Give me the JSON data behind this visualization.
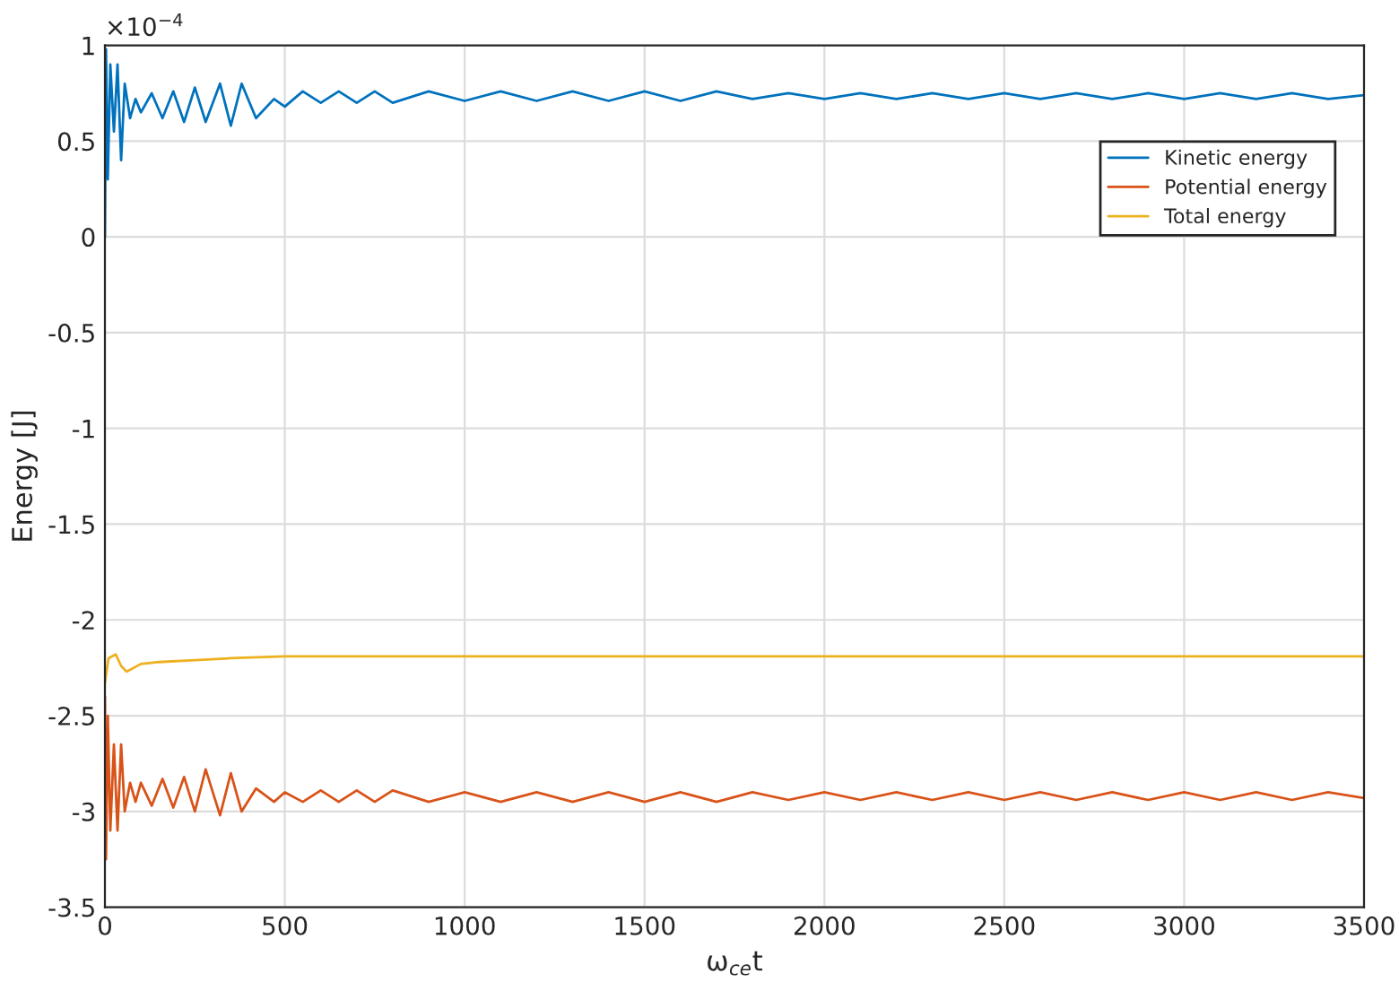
{
  "chart_data": {
    "type": "line",
    "xlabel": "ω$_{ce}$t",
    "ylabel": "Energy [J]",
    "annotations": [
      "×10$^{−4}$"
    ],
    "xlim": [
      0,
      3500
    ],
    "xticks": [
      0,
      500,
      1000,
      1500,
      2000,
      2500,
      3000,
      3500
    ],
    "ylim": [
      -3.5,
      1
    ],
    "yticks": [
      1,
      0.5,
      0,
      -0.5,
      -1,
      -1.5,
      -2,
      -2.5,
      -3,
      -3.5
    ],
    "grid": true,
    "legend": "top right",
    "x": [
      0,
      3,
      8,
      15,
      25,
      35,
      45,
      55,
      70,
      85,
      100,
      130,
      160,
      190,
      220,
      250,
      280,
      320,
      350,
      380,
      420,
      470,
      500,
      550,
      600,
      650,
      700,
      750,
      800,
      900,
      1000,
      1100,
      1200,
      1300,
      1400,
      1500,
      1600,
      1700,
      1800,
      1900,
      2000,
      2100,
      2200,
      2300,
      2400,
      2500,
      2600,
      2700,
      2800,
      2900,
      3000,
      3100,
      3200,
      3300,
      3400,
      3500
    ],
    "series": [
      {
        "name": "Kinetic energy",
        "color": "#0072bd",
        "values": [
          0,
          0.98,
          0.3,
          0.9,
          0.55,
          0.9,
          0.4,
          0.8,
          0.62,
          0.72,
          0.65,
          0.75,
          0.62,
          0.76,
          0.6,
          0.78,
          0.6,
          0.8,
          0.58,
          0.8,
          0.62,
          0.72,
          0.68,
          0.76,
          0.7,
          0.76,
          0.7,
          0.76,
          0.7,
          0.76,
          0.71,
          0.76,
          0.71,
          0.76,
          0.71,
          0.76,
          0.71,
          0.76,
          0.72,
          0.75,
          0.72,
          0.75,
          0.72,
          0.75,
          0.72,
          0.75,
          0.72,
          0.75,
          0.72,
          0.75,
          0.72,
          0.75,
          0.72,
          0.75,
          0.72,
          0.74
        ]
      },
      {
        "name": "Potential energy",
        "color": "#d95319",
        "values": [
          -2.4,
          -3.25,
          -2.5,
          -3.1,
          -2.65,
          -3.1,
          -2.65,
          -3.0,
          -2.85,
          -2.95,
          -2.85,
          -2.97,
          -2.83,
          -2.98,
          -2.82,
          -3.0,
          -2.78,
          -3.02,
          -2.8,
          -3.0,
          -2.88,
          -2.95,
          -2.9,
          -2.95,
          -2.89,
          -2.95,
          -2.89,
          -2.95,
          -2.89,
          -2.95,
          -2.9,
          -2.95,
          -2.9,
          -2.95,
          -2.9,
          -2.95,
          -2.9,
          -2.95,
          -2.9,
          -2.94,
          -2.9,
          -2.94,
          -2.9,
          -2.94,
          -2.9,
          -2.94,
          -2.9,
          -2.94,
          -2.9,
          -2.94,
          -2.9,
          -2.94,
          -2.9,
          -2.94,
          -2.9,
          -2.93
        ]
      },
      {
        "name": "Total energy",
        "color": "#edb120",
        "x": [
          0,
          10,
          30,
          45,
          60,
          100,
          150,
          250,
          350,
          500,
          1000,
          2000,
          3500
        ],
        "values": [
          -2.33,
          -2.2,
          -2.18,
          -2.24,
          -2.27,
          -2.23,
          -2.22,
          -2.21,
          -2.2,
          -2.19,
          -2.19,
          -2.19,
          -2.19
        ]
      }
    ]
  }
}
